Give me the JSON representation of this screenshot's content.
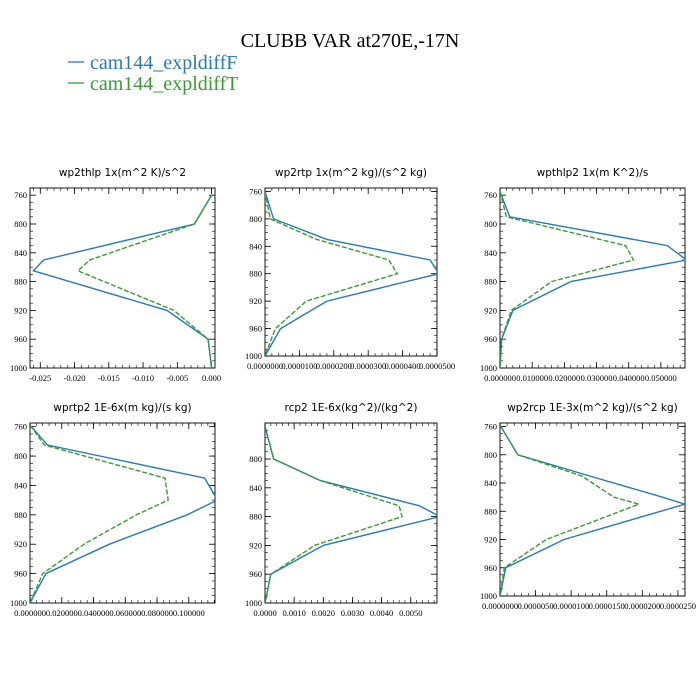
{
  "title": "CLUBB VAR at270E,-17N",
  "legend": [
    {
      "label": "cam144_expldiffF",
      "color": "#2a7ab0"
    },
    {
      "label": "cam144_expldiffT",
      "color": "#3a9a35"
    }
  ],
  "chart_data": [
    {
      "type": "line",
      "title": "wp2thlp   1x(m^2 K)/s^2",
      "xlim": [
        -0.0265,
        0.0005
      ],
      "xticks": [
        -0.025,
        -0.02,
        -0.015,
        -0.01,
        -0.005,
        0.0
      ],
      "xtick_labels": [
        "-0.025",
        "-0.020",
        "-0.015",
        "-0.010",
        "-0.005",
        "0.000"
      ],
      "ylim": [
        1000,
        750
      ],
      "yticks": [
        760,
        800,
        840,
        880,
        920,
        960,
        1000
      ],
      "y": [
        760,
        800,
        850,
        865,
        920,
        960,
        1000
      ],
      "series": [
        {
          "name": "cam144_expldiffF",
          "x": [
            0.0,
            -0.0025,
            -0.0245,
            -0.026,
            -0.0065,
            -0.0005,
            0.0
          ]
        },
        {
          "name": "cam144_expldiffT",
          "x": [
            0.0,
            -0.0025,
            -0.0178,
            -0.0195,
            -0.0055,
            -0.0005,
            0.0
          ]
        }
      ]
    },
    {
      "type": "line",
      "title": "wp2rtp   1x(m^2 kg)/(s^2 kg)",
      "xlim": [
        0.0,
        5e-05
      ],
      "xticks": [
        0.0,
        1e-05,
        2e-05,
        3e-05,
        4e-05,
        5e-05
      ],
      "xtick_labels": [
        "0.0000000",
        "0.0000100",
        "0.0000200",
        "0.0000300",
        "0.0000400",
        "0.0000500"
      ],
      "ylim": [
        1000,
        755
      ],
      "yticks": [
        760,
        800,
        840,
        880,
        920,
        960,
        1000
      ],
      "y": [
        760,
        800,
        830,
        860,
        880,
        920,
        960,
        1000
      ],
      "series": [
        {
          "name": "cam144_expldiffF",
          "x": [
            0.0,
            2.5e-06,
            1.8e-05,
            4.8e-05,
            5.05e-05,
            1.8e-05,
            4.5e-06,
            0.0
          ]
        },
        {
          "name": "cam144_expldiffT",
          "x": [
            0.0,
            1.5e-06,
            1.5e-05,
            3.6e-05,
            3.85e-05,
            1.2e-05,
            3e-06,
            0.0
          ]
        }
      ]
    },
    {
      "type": "line",
      "title": "wpthlp2   1x(m K^2)/s",
      "xlim": [
        0.0,
        0.0575
      ],
      "xticks": [
        0.0,
        0.01,
        0.02,
        0.03,
        0.04,
        0.05
      ],
      "xtick_labels": [
        "0.000000",
        "0.010000",
        "0.020000",
        "0.030000",
        "0.040000",
        "0.050000"
      ],
      "ylim": [
        1000,
        750
      ],
      "yticks": [
        760,
        800,
        840,
        880,
        920,
        960,
        1000
      ],
      "y": [
        755,
        790,
        830,
        850,
        880,
        920,
        960,
        1000
      ],
      "series": [
        {
          "name": "cam144_expldiffF",
          "x": [
            0.0,
            0.003,
            0.052,
            0.058,
            0.022,
            0.004,
            0.0005,
            0.0
          ]
        },
        {
          "name": "cam144_expldiffT",
          "x": [
            0.0,
            0.002,
            0.039,
            0.0415,
            0.016,
            0.0035,
            0.0005,
            0.0
          ]
        }
      ]
    },
    {
      "type": "line",
      "title": "wprtp2   1E-6x(m kg)/(s kg)",
      "xlim": [
        0.0,
        0.1165
      ],
      "xticks": [
        0.0,
        0.02,
        0.04,
        0.06,
        0.08,
        0.1
      ],
      "xtick_labels": [
        "0.000000",
        "0.020000",
        "0.040000",
        "0.060000",
        "0.080000",
        "0.100000"
      ],
      "ylim": [
        1000,
        755
      ],
      "yticks": [
        760,
        800,
        840,
        880,
        920,
        960,
        1000
      ],
      "y": [
        758,
        785,
        830,
        860,
        880,
        920,
        960,
        1000
      ],
      "series": [
        {
          "name": "cam144_expldiffF",
          "x": [
            0.0,
            0.011,
            0.11,
            0.118,
            0.099,
            0.05,
            0.01,
            0.0
          ]
        },
        {
          "name": "cam144_expldiffT",
          "x": [
            0.0,
            0.009,
            0.085,
            0.087,
            0.067,
            0.034,
            0.008,
            0.0
          ]
        }
      ]
    },
    {
      "type": "line",
      "title": "rcp2   1E-6x(kg^2)/(kg^2)",
      "xlim": [
        0.0,
        0.0059
      ],
      "xticks": [
        0.0,
        0.001,
        0.002,
        0.003,
        0.004,
        0.005
      ],
      "xtick_labels": [
        "0.0000",
        "0.0010",
        "0.0020",
        "0.0030",
        "0.0040",
        "0.0050"
      ],
      "ylim": [
        1000,
        750
      ],
      "yticks": [
        800,
        840,
        880,
        920,
        960,
        1000
      ],
      "y": [
        755,
        800,
        830,
        865,
        880,
        920,
        960,
        1000
      ],
      "series": [
        {
          "name": "cam144_expldiffF",
          "x": [
            0.0,
            0.0003,
            0.0019,
            0.0053,
            0.006,
            0.002,
            0.0002,
            0.0
          ]
        },
        {
          "name": "cam144_expldiffT",
          "x": [
            0.0,
            0.0003,
            0.0019,
            0.0046,
            0.0047,
            0.0017,
            0.0002,
            0.0
          ]
        }
      ]
    },
    {
      "type": "line",
      "title": "wp2rcp   1E-3x(m^2 kg)/(s^2 kg)",
      "xlim": [
        0.0,
        2.6e-05
      ],
      "xticks": [
        0.0,
        5e-06,
        1e-05,
        1.5e-05,
        2e-05,
        2.5e-05
      ],
      "xtick_labels": [
        "0.0000000",
        "0.0000050",
        "0.0000100",
        "0.0000150",
        "0.0000200",
        "0.0000250"
      ],
      "ylim": [
        1000,
        755
      ],
      "yticks": [
        760,
        800,
        840,
        880,
        920,
        960,
        1000
      ],
      "y": [
        758,
        800,
        830,
        860,
        870,
        920,
        960,
        1000
      ],
      "series": [
        {
          "name": "cam144_expldiffF",
          "x": [
            0.0,
            2.5e-06,
            1.26e-05,
            2.28e-05,
            2.6e-05,
            9e-06,
            8e-07,
            0.0
          ]
        },
        {
          "name": "cam144_expldiffT",
          "x": [
            0.0,
            2.5e-06,
            1.15e-05,
            1.6e-05,
            1.95e-05,
            6.5e-06,
            6e-07,
            0.0
          ]
        }
      ]
    }
  ]
}
